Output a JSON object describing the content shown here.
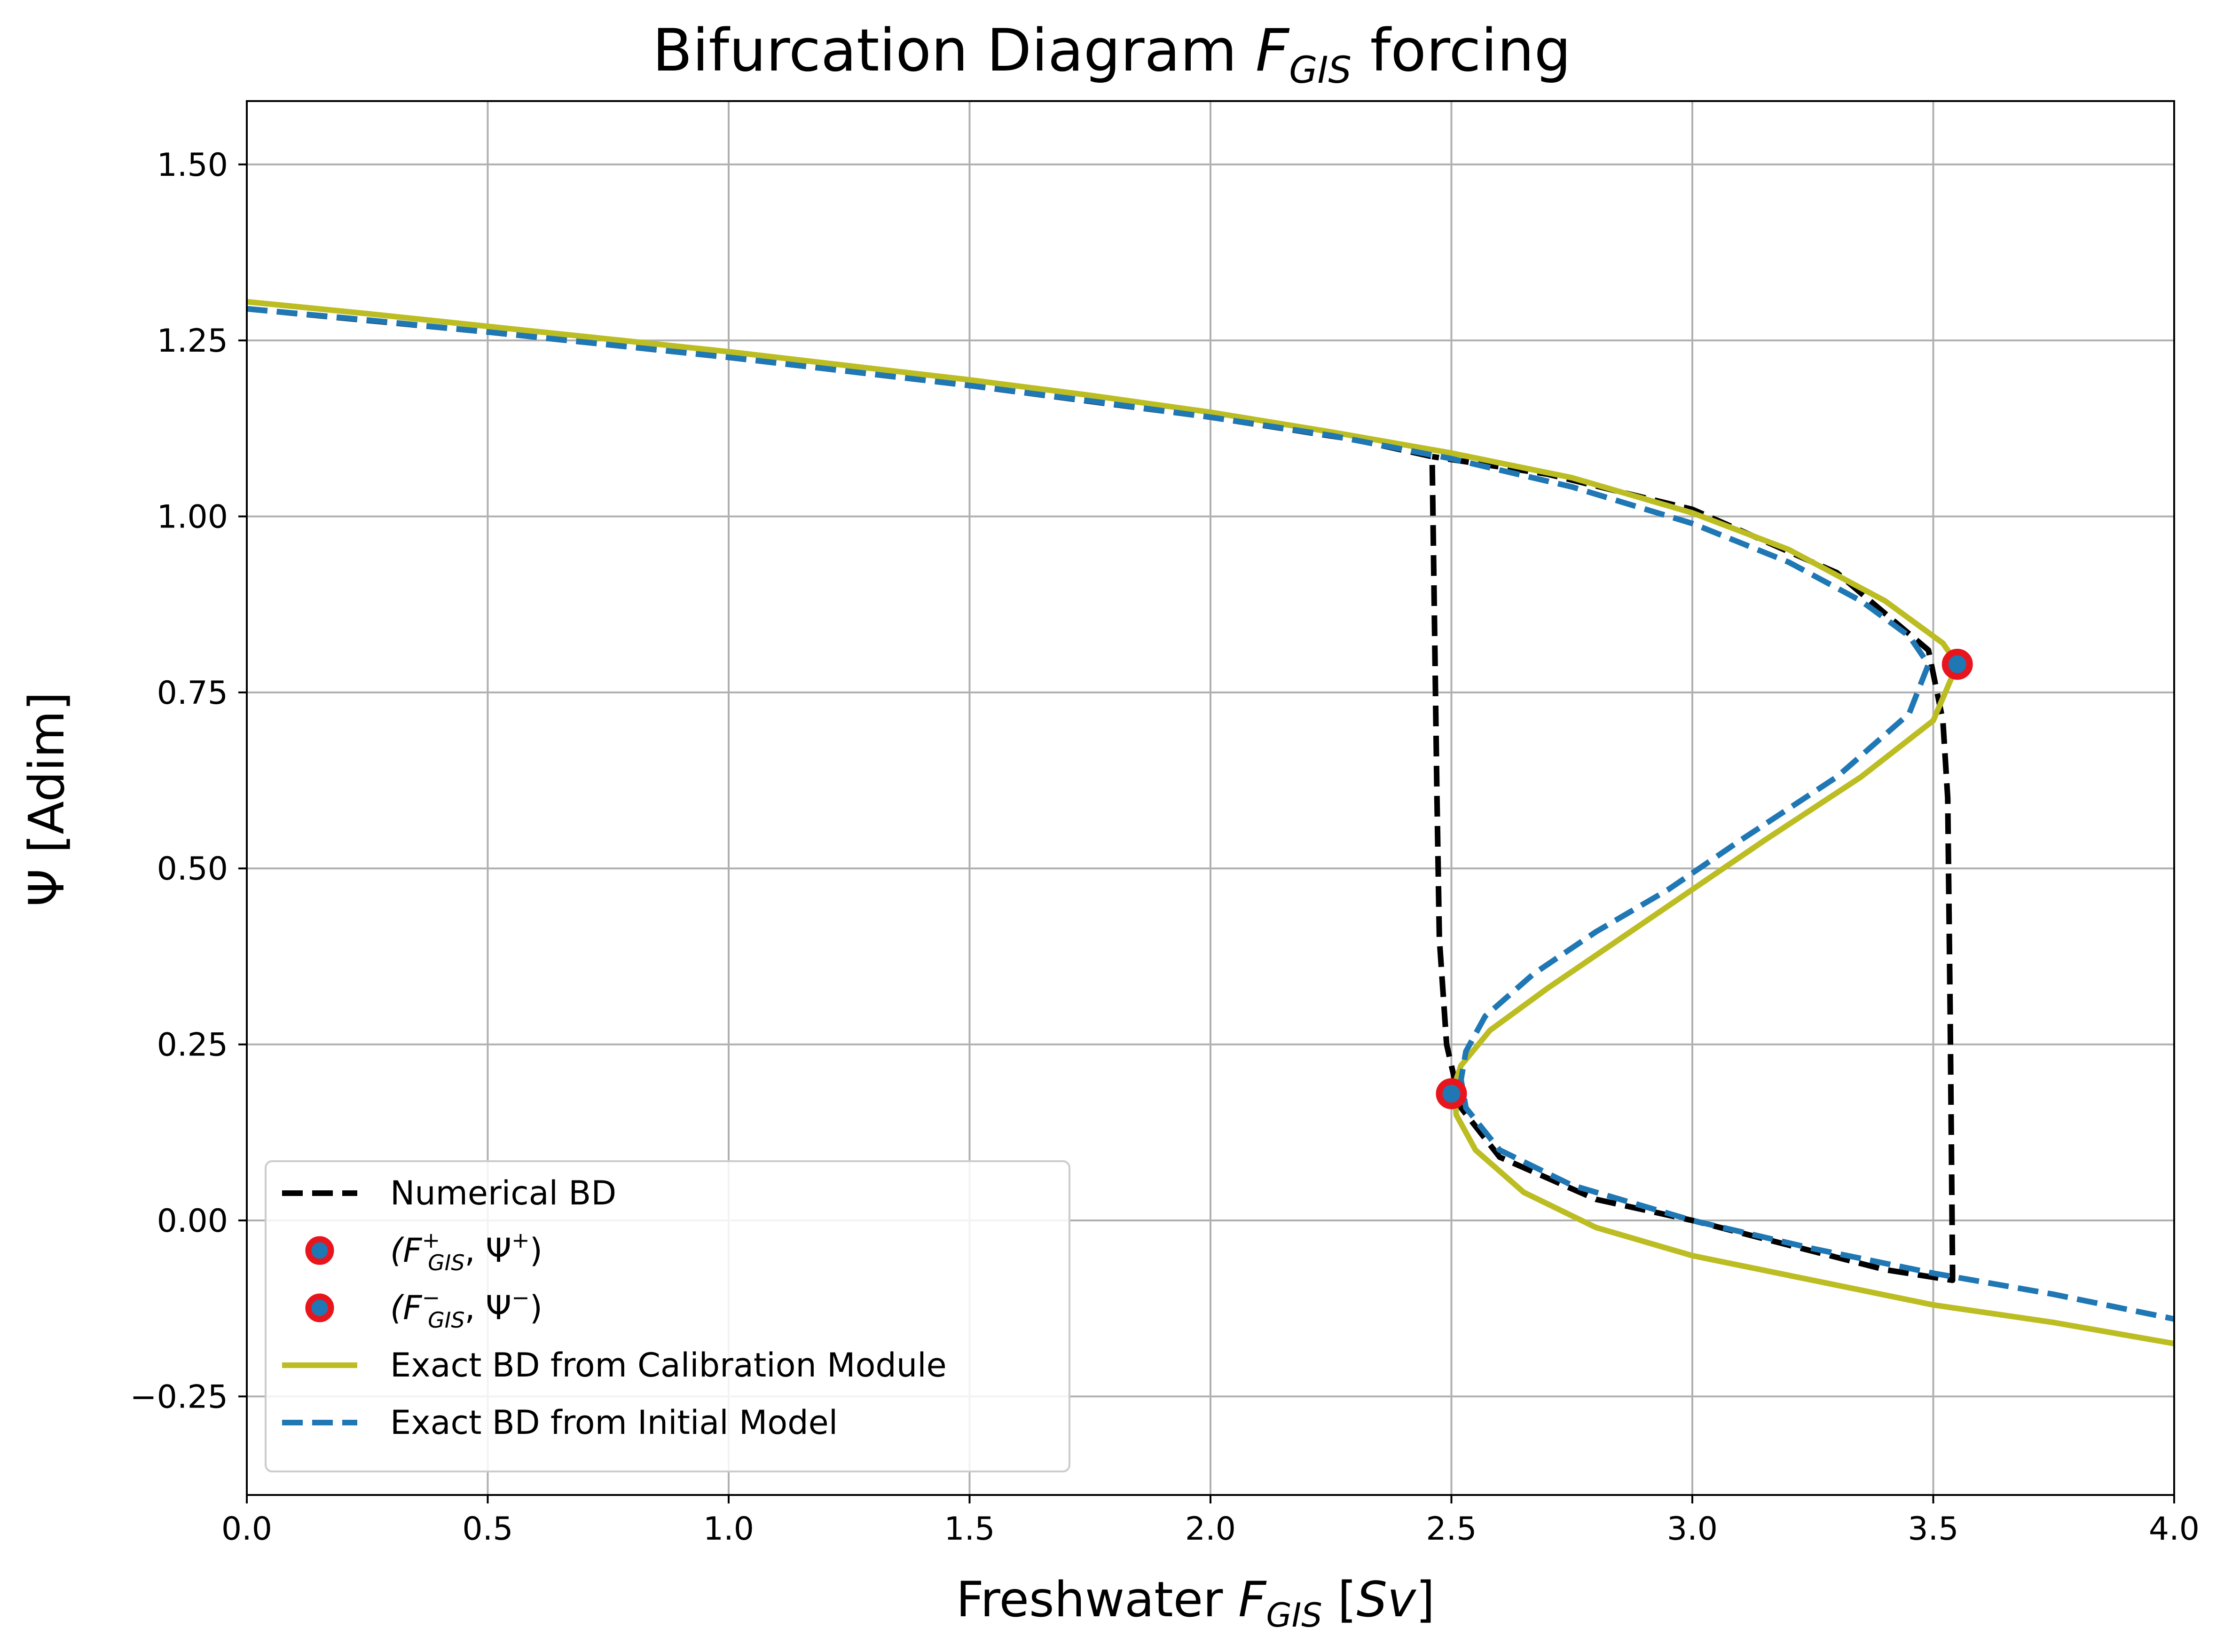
{
  "chart_data": {
    "type": "line",
    "title": "Bifurcation Diagram F_GIS forcing",
    "title_parts": {
      "pre": "Bifurcation Diagram ",
      "var": "F",
      "sub": "GIS",
      "post": " forcing"
    },
    "xlabel": "Freshwater F_GIS [Sv]",
    "xlabel_parts": {
      "pre": "Freshwater ",
      "var": "F",
      "sub": "GIS",
      "post": " [",
      "unit": "Sv",
      "end": "]"
    },
    "ylabel": "Ψ [Adim]",
    "xlim": [
      0.0,
      4.0
    ],
    "ylim": [
      -0.39,
      1.59
    ],
    "xticks": [
      0.0,
      0.5,
      1.0,
      1.5,
      2.0,
      2.5,
      3.0,
      3.5,
      4.0
    ],
    "xtick_labels": [
      "0.0",
      "0.5",
      "1.0",
      "1.5",
      "2.0",
      "2.5",
      "3.0",
      "3.5",
      "4.0"
    ],
    "yticks": [
      -0.25,
      0.0,
      0.25,
      0.5,
      0.75,
      1.0,
      1.25,
      1.5
    ],
    "ytick_labels": [
      "−0.25",
      "0.00",
      "0.25",
      "0.50",
      "0.75",
      "1.00",
      "1.25",
      "1.50"
    ],
    "grid": true,
    "legend_position": "lower-left",
    "series": [
      {
        "name": "Numerical BD",
        "style": "dashed",
        "color": "#000000",
        "points": [
          [
            0.0,
            1.295
          ],
          [
            0.5,
            1.262
          ],
          [
            1.0,
            1.226
          ],
          [
            1.5,
            1.186
          ],
          [
            2.0,
            1.141
          ],
          [
            2.3,
            1.109
          ],
          [
            2.46,
            1.085
          ],
          [
            2.47,
            0.6
          ],
          [
            2.475,
            0.4
          ],
          [
            2.49,
            0.25
          ],
          [
            2.52,
            0.16
          ],
          [
            2.6,
            0.09
          ],
          [
            2.8,
            0.03
          ],
          [
            3.0,
            0.0
          ],
          [
            3.2,
            -0.035
          ],
          [
            3.4,
            -0.07
          ],
          [
            3.54,
            -0.085
          ],
          [
            3.54,
            -0.07
          ],
          [
            3.535,
            0.3
          ],
          [
            3.53,
            0.6
          ],
          [
            3.52,
            0.71
          ],
          [
            3.49,
            0.81
          ],
          [
            3.3,
            0.92
          ],
          [
            3.0,
            1.01
          ],
          [
            2.7,
            1.06
          ],
          [
            2.46,
            1.085
          ]
        ]
      },
      {
        "name": "(F⁺_GIS, Ψ⁺)",
        "style": "marker",
        "color": "#e8151d",
        "points": [
          [
            3.55,
            0.79
          ]
        ]
      },
      {
        "name": "(F⁻_GIS, Ψ⁻)",
        "style": "marker",
        "color": "#e8151d",
        "points": [
          [
            2.5,
            0.18
          ]
        ]
      },
      {
        "name": "Exact BD from Calibration Module",
        "style": "solid",
        "color": "#bcbd22",
        "points": [
          [
            0.0,
            1.305
          ],
          [
            0.25,
            1.288
          ],
          [
            0.5,
            1.27
          ],
          [
            0.75,
            1.252
          ],
          [
            1.0,
            1.234
          ],
          [
            1.25,
            1.214
          ],
          [
            1.5,
            1.194
          ],
          [
            1.75,
            1.172
          ],
          [
            2.0,
            1.148
          ],
          [
            2.25,
            1.12
          ],
          [
            2.5,
            1.09
          ],
          [
            2.75,
            1.055
          ],
          [
            3.0,
            1.005
          ],
          [
            3.2,
            0.953
          ],
          [
            3.4,
            0.88
          ],
          [
            3.52,
            0.82
          ],
          [
            3.55,
            0.79
          ],
          [
            3.5,
            0.71
          ],
          [
            3.35,
            0.63
          ],
          [
            3.15,
            0.54
          ],
          [
            3.0,
            0.47
          ],
          [
            2.85,
            0.4
          ],
          [
            2.7,
            0.33
          ],
          [
            2.58,
            0.27
          ],
          [
            2.52,
            0.22
          ],
          [
            2.505,
            0.19
          ],
          [
            2.51,
            0.15
          ],
          [
            2.55,
            0.1
          ],
          [
            2.65,
            0.04
          ],
          [
            2.8,
            -0.01
          ],
          [
            3.0,
            -0.05
          ],
          [
            3.25,
            -0.085
          ],
          [
            3.5,
            -0.12
          ],
          [
            3.75,
            -0.145
          ],
          [
            4.0,
            -0.175
          ]
        ]
      },
      {
        "name": "Exact BD from Initial Model",
        "style": "dashed",
        "color": "#1f77b4",
        "points": [
          [
            0.0,
            1.295
          ],
          [
            0.25,
            1.279
          ],
          [
            0.5,
            1.262
          ],
          [
            0.75,
            1.244
          ],
          [
            1.0,
            1.226
          ],
          [
            1.25,
            1.206
          ],
          [
            1.5,
            1.186
          ],
          [
            1.75,
            1.164
          ],
          [
            2.0,
            1.141
          ],
          [
            2.25,
            1.115
          ],
          [
            2.5,
            1.082
          ],
          [
            2.75,
            1.042
          ],
          [
            3.0,
            0.99
          ],
          [
            3.2,
            0.935
          ],
          [
            3.35,
            0.88
          ],
          [
            3.45,
            0.83
          ],
          [
            3.49,
            0.79
          ],
          [
            3.45,
            0.72
          ],
          [
            3.3,
            0.63
          ],
          [
            3.1,
            0.54
          ],
          [
            2.95,
            0.47
          ],
          [
            2.8,
            0.41
          ],
          [
            2.67,
            0.35
          ],
          [
            2.57,
            0.29
          ],
          [
            2.53,
            0.24
          ],
          [
            2.52,
            0.2
          ],
          [
            2.53,
            0.16
          ],
          [
            2.6,
            0.1
          ],
          [
            2.75,
            0.05
          ],
          [
            3.0,
            0.0
          ],
          [
            3.25,
            -0.04
          ],
          [
            3.5,
            -0.075
          ],
          [
            3.75,
            -0.105
          ],
          [
            4.0,
            -0.14
          ]
        ]
      }
    ]
  },
  "legend": {
    "items": [
      {
        "label": "Numerical BD",
        "kind": "dashed",
        "color": "#000000"
      },
      {
        "label_pre": "(F",
        "label_sup": "+",
        "label_sub": "GIS",
        "label_post": ", Ψ",
        "label_post_sup": "+",
        "label_end": ")",
        "kind": "marker",
        "color": "#e8151d"
      },
      {
        "label_pre": "(F",
        "label_sup": "−",
        "label_sub": "GIS",
        "label_post": ", Ψ",
        "label_post_sup": "−",
        "label_end": ")",
        "kind": "marker",
        "color": "#e8151d"
      },
      {
        "label": "Exact BD from Calibration Module",
        "kind": "solid",
        "color": "#bcbd22"
      },
      {
        "label": "Exact BD from Initial Model",
        "kind": "dashed",
        "color": "#1f77b4"
      }
    ]
  }
}
